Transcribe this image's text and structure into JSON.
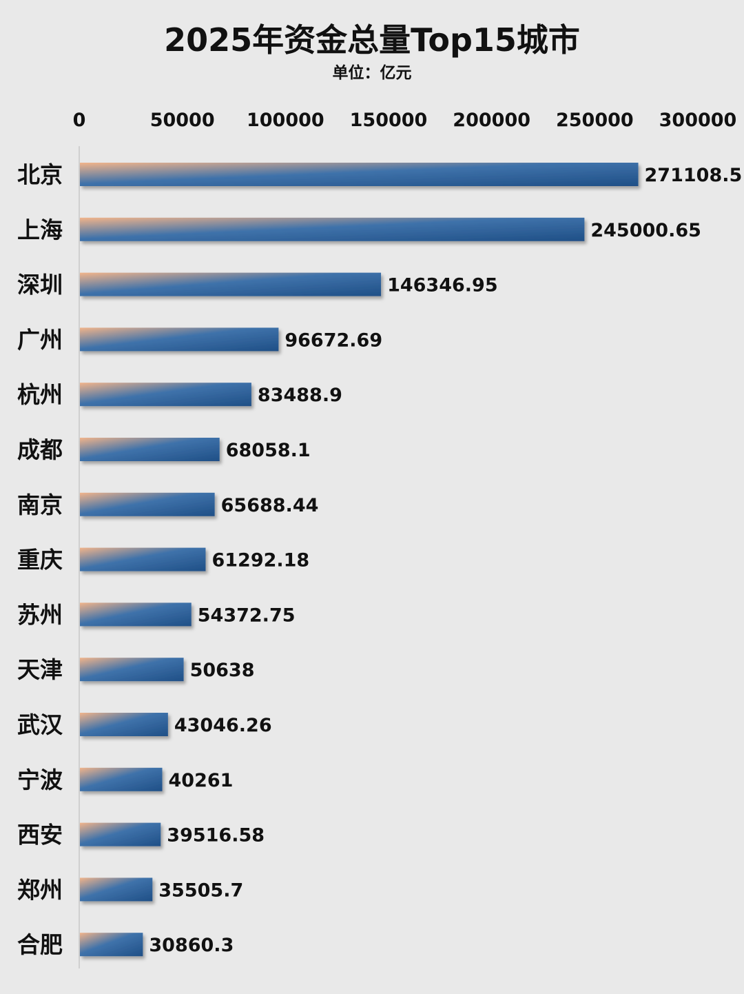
{
  "chart_data": {
    "type": "bar",
    "orientation": "horizontal",
    "title": "2025年资金总量Top15城市",
    "subtitle": "单位：亿元",
    "categories": [
      "北京",
      "上海",
      "深圳",
      "广州",
      "杭州",
      "成都",
      "南京",
      "重庆",
      "苏州",
      "天津",
      "武汉",
      "宁波",
      "西安",
      "郑州",
      "合肥"
    ],
    "values": [
      271108.5,
      245000.65,
      146346.95,
      96672.69,
      83488.9,
      68058.1,
      65688.44,
      61292.18,
      54372.75,
      50638,
      43046.26,
      40261,
      39516.58,
      35505.7,
      30860.3
    ],
    "value_labels": [
      "271108.5",
      "245000.65",
      "146346.95",
      "96672.69",
      "83488.9",
      "68058.1",
      "65688.44",
      "61292.18",
      "54372.75",
      "50638",
      "43046.26",
      "40261",
      "39516.58",
      "35505.7",
      "30860.3"
    ],
    "x_ticks": [
      "0",
      "50000",
      "100000",
      "150000",
      "200000",
      "250000",
      "300000"
    ],
    "xlim": [
      0,
      300000
    ],
    "xaxis_position": "top",
    "grid": false,
    "legend": "none",
    "colors": {
      "bar_start": "#f2b48a",
      "bar_end": "#1f4f86",
      "bar_mid": "#3f72aa",
      "background": "#e9e9e9",
      "axis_line": "#c8c8c8"
    }
  }
}
